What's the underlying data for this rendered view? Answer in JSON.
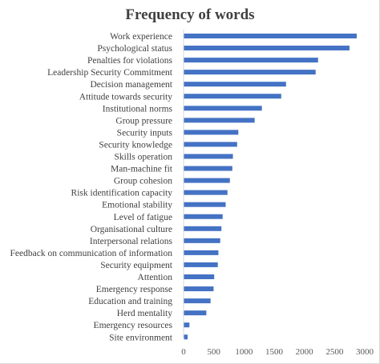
{
  "chart_data": {
    "type": "bar",
    "orientation": "horizontal",
    "title": "Frequency of words",
    "xlabel": "",
    "ylabel": "",
    "xlim": [
      0,
      3000
    ],
    "xticks": [
      "0",
      "500",
      "1000",
      "1500",
      "2000",
      "2500",
      "3000"
    ],
    "grid": false,
    "legend": "none",
    "bar_color": "#4472C4",
    "categories": [
      "Work experience",
      "Psychological status",
      "Penalties for violations",
      "Leadership Security Commitment",
      "Decision management",
      "Attitude towards security",
      "Institutional norms",
      "Group pressure",
      "Security inputs",
      "Security knowledge",
      "Skills operation",
      "Man-machine fit",
      "Group cohesion",
      "Risk identification capacity",
      "Emotional stability",
      "Level of fatigue",
      "Organisational culture",
      "Interpersonal relations",
      "Feedback on communication of information",
      "Security equipment",
      "Attention",
      "Emergency response",
      "Education and training",
      "Herd mentality",
      "Emergency resources",
      "Site environment"
    ],
    "values": [
      2860,
      2740,
      2220,
      2180,
      1690,
      1610,
      1290,
      1170,
      900,
      880,
      810,
      800,
      760,
      720,
      690,
      640,
      620,
      600,
      570,
      560,
      500,
      490,
      440,
      370,
      90,
      60
    ]
  }
}
